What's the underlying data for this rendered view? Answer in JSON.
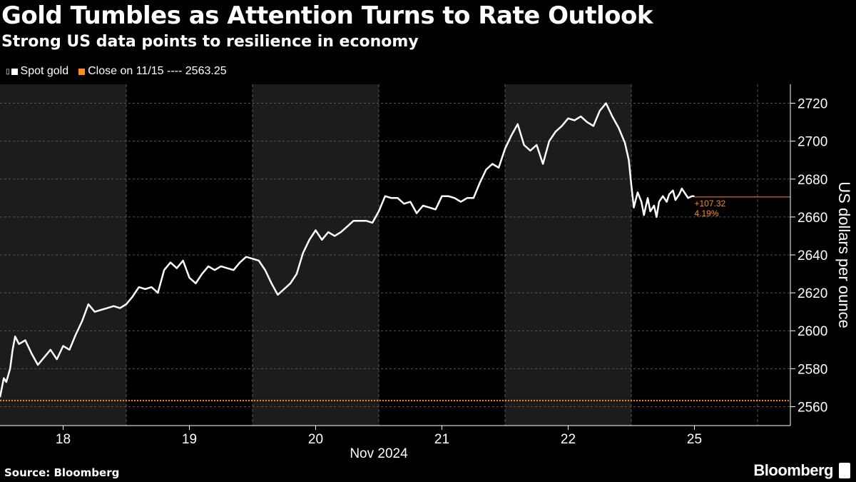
{
  "header": {
    "title": "Gold Tumbles as Attention Turns to Rate Outlook",
    "subtitle": "Strong US data points to resilience in economy"
  },
  "legend": {
    "spot_label": "Spot gold",
    "close_label": "Close on 11/15 ---- 2563.25",
    "spot_color": "#ffffff",
    "close_color": "#ff8c1a"
  },
  "footer": {
    "source": "Source: Bloomberg",
    "brand": "Bloomberg"
  },
  "chart_data": {
    "type": "line",
    "title": "Gold Tumbles as Attention Turns to Rate Outlook",
    "subtitle": "Strong US data points to resilience in economy",
    "ylabel": "US dollars per ounce",
    "xlabel": "Nov 2024",
    "ylim": [
      2550,
      2730
    ],
    "yticks": [
      2560,
      2580,
      2600,
      2620,
      2640,
      2660,
      2680,
      2700,
      2720
    ],
    "xlim": [
      0,
      6.75
    ],
    "day_ticks": [
      {
        "label": "18",
        "x": 0.5
      },
      {
        "label": "19",
        "x": 1.5
      },
      {
        "label": "20",
        "x": 2.5
      },
      {
        "label": "21",
        "x": 3.5
      },
      {
        "label": "22",
        "x": 4.5
      },
      {
        "label": "25",
        "x": 5.5
      }
    ],
    "shaded_days": [
      [
        0,
        1
      ],
      [
        2,
        3
      ],
      [
        4,
        5
      ]
    ],
    "reference_line": {
      "label": "Close on 11/15",
      "value": 2563.25
    },
    "annotation": {
      "change": "+107.32",
      "pct": "4.19%",
      "last_value": 2670.57
    },
    "grid": true,
    "series": [
      {
        "name": "Spot gold",
        "x": [
          0.0,
          0.03,
          0.05,
          0.08,
          0.1,
          0.12,
          0.15,
          0.2,
          0.25,
          0.3,
          0.35,
          0.4,
          0.45,
          0.5,
          0.55,
          0.6,
          0.65,
          0.7,
          0.75,
          0.8,
          0.85,
          0.9,
          0.95,
          1.0,
          1.05,
          1.1,
          1.15,
          1.2,
          1.25,
          1.3,
          1.35,
          1.4,
          1.45,
          1.5,
          1.55,
          1.6,
          1.65,
          1.7,
          1.75,
          1.8,
          1.85,
          1.9,
          1.95,
          2.0,
          2.05,
          2.1,
          2.15,
          2.2,
          2.25,
          2.3,
          2.35,
          2.4,
          2.45,
          2.5,
          2.55,
          2.6,
          2.65,
          2.7,
          2.75,
          2.8,
          2.85,
          2.9,
          2.95,
          3.0,
          3.05,
          3.1,
          3.15,
          3.2,
          3.25,
          3.3,
          3.35,
          3.4,
          3.45,
          3.5,
          3.55,
          3.6,
          3.65,
          3.7,
          3.75,
          3.8,
          3.85,
          3.9,
          3.95,
          4.0,
          4.05,
          4.1,
          4.15,
          4.2,
          4.25,
          4.3,
          4.35,
          4.4,
          4.45,
          4.5,
          4.55,
          4.6,
          4.65,
          4.7,
          4.75,
          4.8,
          4.85,
          4.9,
          4.95,
          4.98,
          5.0,
          5.02,
          5.05,
          5.08,
          5.1,
          5.13,
          5.15,
          5.18,
          5.2,
          5.22,
          5.25,
          5.28,
          5.3,
          5.33,
          5.35,
          5.38,
          5.4,
          5.43,
          5.45,
          5.48,
          5.5
        ],
        "values": [
          2565,
          2575,
          2573,
          2580,
          2590,
          2597,
          2593,
          2595,
          2588,
          2582,
          2586,
          2590,
          2585,
          2592,
          2590,
          2598,
          2605,
          2614,
          2610,
          2611,
          2612,
          2613,
          2612,
          2614,
          2618,
          2623,
          2622,
          2623,
          2620,
          2632,
          2636,
          2633,
          2637,
          2628,
          2625,
          2630,
          2634,
          2632,
          2634,
          2633,
          2632,
          2636,
          2639,
          2638,
          2637,
          2632,
          2625,
          2619,
          2622,
          2625,
          2630,
          2641,
          2648,
          2653,
          2648,
          2652,
          2650,
          2652,
          2655,
          2658,
          2658,
          2658,
          2657,
          2663,
          2671,
          2670,
          2670,
          2667,
          2668,
          2662,
          2666,
          2665,
          2664,
          2671,
          2671,
          2670,
          2668,
          2670,
          2670,
          2678,
          2685,
          2688,
          2686,
          2696,
          2703,
          2709,
          2698,
          2695,
          2698,
          2688,
          2700,
          2705,
          2708,
          2712,
          2711,
          2713,
          2710,
          2708,
          2716,
          2720,
          2713,
          2707,
          2699,
          2690,
          2677,
          2665,
          2673,
          2668,
          2661,
          2670,
          2663,
          2666,
          2660,
          2668,
          2671,
          2668,
          2672,
          2674,
          2669,
          2672,
          2675,
          2672,
          2670,
          2671,
          2671
        ]
      }
    ]
  }
}
